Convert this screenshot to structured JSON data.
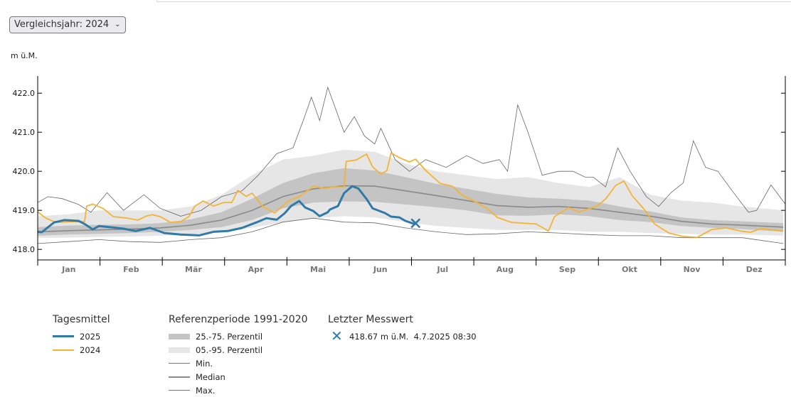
{
  "selector": {
    "label": "Vergleichsjahr: 2024",
    "icon": "chevron-down-icon"
  },
  "chart_data": {
    "type": "line",
    "ylabel": "m ü.M.",
    "ylim": [
      417.73,
      422.44
    ],
    "yticks": [
      "418.0",
      "419.0",
      "420.0",
      "421.0",
      "422.0"
    ],
    "xlim": [
      0,
      366
    ],
    "months": [
      "Jan",
      "Feb",
      "Mär",
      "Apr",
      "Mai",
      "Jun",
      "Jul",
      "Aug",
      "Sep",
      "Okt",
      "Nov",
      "Dez"
    ],
    "grid": false,
    "colors": {
      "y2025": "#2f7aa6",
      "y2024": "#f5b335",
      "p25_75": "#c4c4c4",
      "p05_95": "#e6e6e6",
      "median": "#8a8a8a",
      "minmax": "#666666"
    },
    "reference": {
      "days": [
        0,
        15,
        30,
        45,
        60,
        75,
        90,
        105,
        120,
        135,
        150,
        165,
        180,
        195,
        210,
        225,
        240,
        255,
        270,
        285,
        300,
        315,
        330,
        345,
        365
      ],
      "median": [
        418.45,
        418.48,
        418.5,
        418.52,
        418.55,
        418.62,
        418.75,
        419.0,
        419.35,
        419.55,
        419.63,
        419.62,
        419.5,
        419.38,
        419.25,
        419.12,
        419.08,
        419.1,
        419.05,
        418.95,
        418.85,
        418.72,
        418.65,
        418.62,
        418.57
      ],
      "p25": [
        418.35,
        418.38,
        418.4,
        418.42,
        418.45,
        418.5,
        418.57,
        418.75,
        419.05,
        419.2,
        419.23,
        419.22,
        419.15,
        419.08,
        419.0,
        418.87,
        418.86,
        418.9,
        418.85,
        418.75,
        418.7,
        418.6,
        418.55,
        418.52,
        418.45
      ],
      "p75": [
        418.57,
        418.61,
        418.63,
        418.64,
        418.67,
        418.77,
        418.95,
        419.3,
        419.7,
        419.95,
        420.08,
        420.02,
        419.85,
        419.68,
        419.55,
        419.42,
        419.33,
        419.3,
        419.25,
        419.1,
        418.97,
        418.82,
        418.75,
        418.72,
        418.67
      ],
      "p05": [
        418.3,
        418.3,
        418.32,
        418.33,
        418.35,
        418.38,
        418.45,
        418.55,
        418.7,
        418.8,
        418.85,
        418.82,
        418.7,
        418.6,
        418.55,
        418.5,
        418.5,
        418.5,
        418.45,
        418.45,
        418.42,
        418.4,
        418.38,
        418.38,
        418.35
      ],
      "p95": [
        418.85,
        418.9,
        419.0,
        419.0,
        419.0,
        419.1,
        419.4,
        419.9,
        420.3,
        420.4,
        420.55,
        420.5,
        420.2,
        420.0,
        419.9,
        419.8,
        419.85,
        419.7,
        419.6,
        419.85,
        419.4,
        419.25,
        419.2,
        419.1,
        419.0
      ],
      "min": [
        418.15,
        418.2,
        418.25,
        418.2,
        418.18,
        418.25,
        418.3,
        418.45,
        418.7,
        418.8,
        418.7,
        418.68,
        418.55,
        418.45,
        418.38,
        418.4,
        418.45,
        418.42,
        418.38,
        418.35,
        418.35,
        418.3,
        418.3,
        418.3,
        418.15
      ],
      "max_days": [
        0,
        5,
        12,
        20,
        26,
        34,
        42,
        52,
        60,
        70,
        80,
        90,
        100,
        108,
        117,
        125,
        130,
        134,
        138,
        142,
        150,
        155,
        160,
        165,
        168,
        175,
        182,
        190,
        200,
        210,
        218,
        226,
        230,
        235,
        240,
        247,
        255,
        262,
        268,
        272,
        278,
        284,
        290,
        298,
        304,
        310,
        316,
        321,
        327,
        333,
        340,
        348,
        352,
        359,
        366
      ],
      "max": [
        419.2,
        419.35,
        419.3,
        419.15,
        418.95,
        419.45,
        419.0,
        419.4,
        419.05,
        418.85,
        419.0,
        419.35,
        419.5,
        419.9,
        420.45,
        420.6,
        421.3,
        421.9,
        421.3,
        422.15,
        421.0,
        421.4,
        420.9,
        420.7,
        421.1,
        420.3,
        420.0,
        420.3,
        420.1,
        420.4,
        420.2,
        420.3,
        420.0,
        421.7,
        421.0,
        419.9,
        420.0,
        420.0,
        419.85,
        419.85,
        419.6,
        420.6,
        420.0,
        419.35,
        419.1,
        419.45,
        419.7,
        420.78,
        420.1,
        420.0,
        419.5,
        418.95,
        419.0,
        419.65,
        419.16
      ]
    },
    "series": [
      {
        "name": "2025",
        "days": [
          0,
          2,
          8,
          13,
          20,
          23,
          27,
          30,
          37,
          42,
          48,
          55,
          62,
          70,
          79,
          86,
          93,
          100,
          107,
          112,
          117,
          121,
          124,
          128,
          131,
          135,
          138,
          142,
          143,
          147,
          150,
          154,
          157,
          161,
          164,
          170,
          173,
          177,
          180,
          185
        ],
        "values": [
          418.45,
          418.44,
          418.69,
          418.75,
          418.73,
          418.65,
          418.51,
          418.6,
          418.56,
          418.53,
          418.47,
          418.55,
          418.42,
          418.38,
          418.36,
          418.45,
          418.47,
          418.55,
          418.69,
          418.8,
          418.76,
          418.93,
          419.11,
          419.24,
          419.07,
          418.98,
          418.85,
          418.95,
          419.02,
          419.11,
          419.44,
          419.62,
          419.56,
          419.29,
          419.05,
          418.93,
          418.84,
          418.82,
          418.73,
          418.64
        ]
      },
      {
        "name": "2024",
        "days": [
          0,
          4,
          9,
          16,
          23,
          24,
          27,
          32,
          37,
          44,
          49,
          53,
          56,
          60,
          65,
          70,
          74,
          77,
          81,
          86,
          91,
          95,
          98,
          102,
          105,
          110,
          116,
          119,
          123,
          128,
          135,
          140,
          145,
          150,
          151,
          156,
          161,
          164,
          168,
          171,
          173,
          177,
          182,
          185,
          190,
          197,
          203,
          208,
          215,
          220,
          225,
          232,
          244,
          250,
          253,
          260,
          265,
          274,
          278,
          283,
          287,
          291,
          297,
          302,
          309,
          316,
          323,
          330,
          337,
          344,
          349,
          354,
          365
        ],
        "values": [
          418.96,
          418.8,
          418.69,
          418.71,
          418.71,
          419.11,
          419.16,
          419.05,
          418.84,
          418.8,
          418.75,
          418.85,
          418.89,
          418.84,
          418.69,
          418.71,
          418.84,
          419.11,
          419.24,
          419.11,
          419.2,
          419.2,
          419.51,
          419.36,
          419.44,
          419.11,
          418.93,
          419.07,
          419.25,
          419.35,
          419.62,
          419.56,
          419.6,
          419.6,
          420.25,
          420.29,
          420.44,
          420.11,
          419.93,
          420.02,
          420.47,
          420.35,
          420.24,
          420.31,
          420.02,
          419.69,
          419.62,
          419.38,
          419.2,
          419.05,
          418.82,
          418.69,
          418.65,
          418.47,
          418.84,
          419.07,
          418.96,
          419.11,
          419.29,
          419.64,
          419.75,
          419.38,
          419.02,
          418.65,
          418.42,
          418.33,
          418.31,
          418.51,
          418.55,
          418.47,
          418.44,
          418.53,
          418.47
        ]
      }
    ],
    "last_value": {
      "day": 185,
      "value": 418.67
    }
  },
  "legend": {
    "daily": {
      "title": "Tagesmittel",
      "items": [
        "2025",
        "2024"
      ]
    },
    "reference": {
      "title": "Referenzperiode 1991-2020",
      "items": [
        "25.-75. Perzentil",
        "05.-95. Perzentil",
        "Min.",
        "Median",
        "Max."
      ]
    },
    "last": {
      "title": "Letzter Messwert",
      "text": "418.67 m ü.M.  4.7.2025 08:30",
      "icon": "x-mark-icon"
    }
  }
}
